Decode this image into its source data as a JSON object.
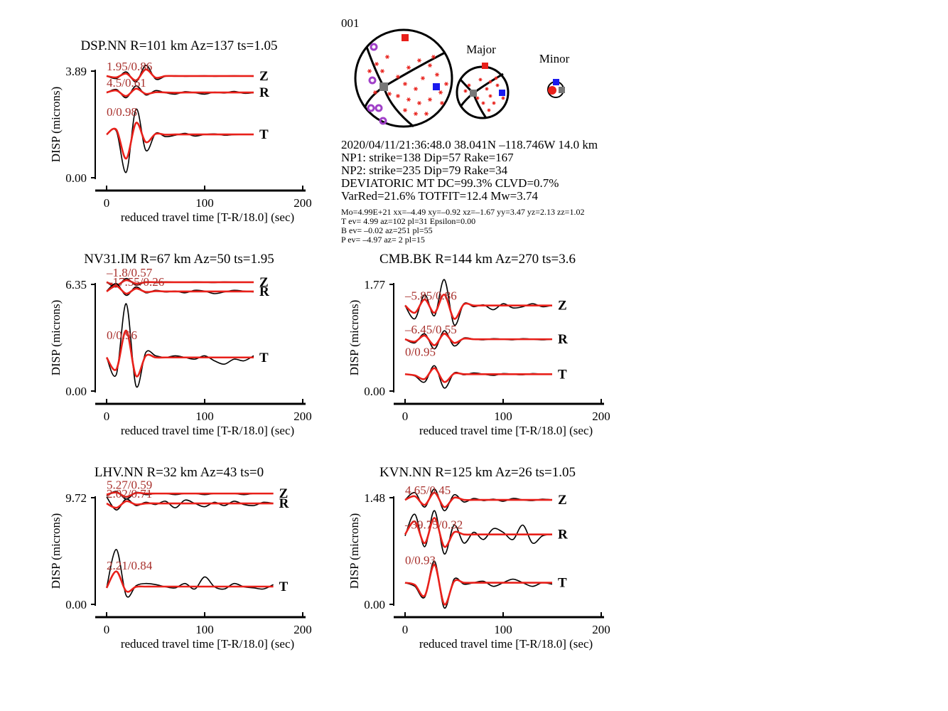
{
  "figure_id": "001",
  "focal_mechanism_labels": {
    "major": "Major",
    "minor": "Minor"
  },
  "event_info": [
    "2020/04/11/21:36:48.0 38.041N –118.746W 14.0 km",
    "NP1: strike=138 Dip=57 Rake=167",
    "NP2: strike=235 Dip=79 Rake=34",
    "DEVIATORIC MT DC=99.3% CLVD=0.7%",
    "VarRed=21.6% TOTFIT=12.4 Mw=3.74"
  ],
  "solution_details": [
    "Mo=4.99E+21 xx=–4.49 xy=–0.92 xz=–1.67 yy=3.47 yz=2.13 zz=1.02",
    "T ev=  4.99 az=102 pl=31 Epsilon=0.00",
    "B ev= –0.02 az=251 pl=55",
    "P ev= –4.97 az=  2 pl=15"
  ],
  "chart_data": [
    {
      "type": "line",
      "title": "DSP.NN R=101 km Az=137 ts=1.05",
      "ylabel": "DISP (microns)",
      "xlabel": "reduced travel time [T-R/18.0] (sec)",
      "xlim": [
        0,
        200
      ],
      "xticks": [
        0,
        100,
        200
      ],
      "ylim": [
        0,
        3.89
      ],
      "yticks": [
        {
          "value": 0,
          "label": "0.00"
        },
        3.89
      ],
      "observed_color": "#000000",
      "synthetic_color": "#e8201a",
      "fit_label_color": "#a8302c",
      "x": [
        0,
        10,
        20,
        30,
        40,
        50,
        60,
        70,
        80,
        90,
        100,
        110,
        120,
        130,
        140,
        150
      ],
      "traces": [
        {
          "name": "Z",
          "fit_label": "1.95/0.86",
          "observed": [
            3.71,
            3.62,
            3.86,
            3.5,
            4.1,
            3.6,
            3.7,
            3.72,
            3.7,
            3.71,
            3.72,
            3.7,
            3.71,
            3.72,
            3.71,
            3.7
          ],
          "synthetic": [
            3.71,
            3.66,
            3.8,
            3.55,
            3.95,
            3.65,
            3.71,
            3.71,
            3.71,
            3.71,
            3.71,
            3.71,
            3.71,
            3.71,
            3.71,
            3.71
          ]
        },
        {
          "name": "R",
          "fit_label": "4.5/0.61",
          "observed": [
            3.1,
            3.22,
            2.92,
            3.35,
            3.02,
            3.18,
            3.1,
            3.05,
            3.14,
            3.1,
            3.05,
            3.12,
            3.09,
            3.15,
            3.08,
            3.1
          ],
          "synthetic": [
            3.11,
            3.18,
            2.98,
            3.25,
            3.06,
            3.12,
            3.11,
            3.1,
            3.11,
            3.11,
            3.11,
            3.11,
            3.11,
            3.11,
            3.11,
            3.11
          ]
        },
        {
          "name": "T",
          "fit_label": "0/0.98",
          "observed": [
            1.58,
            1.7,
            0.2,
            2.5,
            1.0,
            1.62,
            1.5,
            1.55,
            1.62,
            1.52,
            1.58,
            1.6,
            1.55,
            1.57,
            1.58,
            1.58
          ],
          "synthetic": [
            1.58,
            1.75,
            0.7,
            2.0,
            1.3,
            1.6,
            1.57,
            1.58,
            1.58,
            1.58,
            1.58,
            1.58,
            1.58,
            1.58,
            1.58,
            1.58
          ]
        }
      ]
    },
    {
      "type": "line",
      "title": "NV31.IM R=67 km Az=50 ts=1.95",
      "ylabel": "DISP (microns)",
      "xlabel": "reduced travel time [T-R/18.0] (sec)",
      "xlim": [
        0,
        200
      ],
      "xticks": [
        0,
        100,
        200
      ],
      "ylim": [
        0,
        6.35
      ],
      "yticks": [
        {
          "value": 0,
          "label": "0.00"
        },
        6.35
      ],
      "observed_color": "#000000",
      "synthetic_color": "#e8201a",
      "fit_label_color": "#a8302c",
      "x": [
        0,
        10,
        20,
        30,
        40,
        50,
        60,
        70,
        80,
        90,
        100,
        110,
        120,
        130,
        140,
        150
      ],
      "traces": [
        {
          "name": "Z",
          "fit_label": "–1.8/0.57",
          "observed": [
            6.48,
            6.2,
            6.7,
            6.3,
            6.5,
            6.45,
            6.5,
            6.48,
            6.47,
            6.5,
            6.48,
            6.46,
            6.5,
            6.48,
            6.47,
            6.48
          ],
          "synthetic": [
            6.48,
            6.3,
            6.6,
            6.4,
            6.48,
            6.48,
            6.48,
            6.48,
            6.48,
            6.48,
            6.48,
            6.48,
            6.48,
            6.48,
            6.48,
            6.48
          ]
        },
        {
          "name": "R",
          "fit_label": "–17.55/0.26",
          "observed": [
            5.95,
            6.4,
            5.7,
            6.2,
            5.85,
            6.0,
            5.9,
            5.95,
            5.85,
            6.0,
            5.95,
            5.8,
            5.9,
            6.0,
            5.95,
            5.9
          ],
          "synthetic": [
            5.93,
            6.25,
            5.8,
            6.1,
            5.9,
            5.95,
            5.93,
            5.93,
            5.93,
            5.93,
            5.93,
            5.93,
            5.93,
            5.93,
            5.93,
            5.93
          ]
        },
        {
          "name": "T",
          "fit_label": "0/0.96",
          "observed": [
            2.0,
            1.0,
            5.2,
            0.3,
            2.3,
            2.1,
            2.0,
            2.1,
            2.0,
            1.9,
            2.1,
            1.8,
            1.6,
            1.9,
            1.8,
            2.1
          ],
          "synthetic": [
            2.0,
            1.3,
            3.6,
            0.9,
            2.1,
            2.0,
            2.0,
            2.0,
            2.0,
            2.0,
            2.0,
            2.0,
            2.0,
            2.0,
            2.0,
            2.0
          ]
        }
      ]
    },
    {
      "type": "line",
      "title": "LHV.NN R=32 km Az=43 ts=0",
      "ylabel": "DISP (microns)",
      "xlabel": "reduced travel time [T-R/18.0] (sec)",
      "xlim": [
        0,
        200
      ],
      "xticks": [
        0,
        100,
        200
      ],
      "ylim": [
        0,
        9.72
      ],
      "yticks": [
        {
          "value": 0,
          "label": "0.00"
        },
        9.72
      ],
      "observed_color": "#000000",
      "synthetic_color": "#e8201a",
      "fit_label_color": "#a8302c",
      "x": [
        0,
        10,
        20,
        30,
        40,
        50,
        60,
        70,
        80,
        90,
        100,
        110,
        120,
        130,
        140,
        150,
        160,
        170
      ],
      "traces": [
        {
          "name": "Z",
          "fit_label": "5.27/0.59",
          "observed": [
            9.9,
            10.3,
            9.6,
            10.2,
            10.0,
            10.1,
            10.1,
            10.0,
            10.1,
            10.1,
            10.0,
            10.1,
            10.1,
            10.1,
            10.0,
            10.1,
            10.1,
            10.1
          ],
          "synthetic": [
            10.0,
            10.2,
            9.8,
            10.15,
            10.1,
            10.1,
            10.1,
            10.1,
            10.1,
            10.1,
            10.1,
            10.1,
            10.1,
            10.1,
            10.1,
            10.1,
            10.1,
            10.1
          ]
        },
        {
          "name": "R",
          "fit_label": "2.02/0.71",
          "observed": [
            9.8,
            8.6,
            9.6,
            9.0,
            9.3,
            9.1,
            9.4,
            8.8,
            9.5,
            9.2,
            8.9,
            9.3,
            9.0,
            9.4,
            9.1,
            9.0,
            9.3,
            9.2
          ],
          "synthetic": [
            9.2,
            8.8,
            9.4,
            9.1,
            9.2,
            9.2,
            9.2,
            9.2,
            9.2,
            9.2,
            9.2,
            9.2,
            9.2,
            9.2,
            9.2,
            9.2,
            9.2,
            9.2
          ]
        },
        {
          "name": "T",
          "fit_label": "2.21/0.84",
          "observed": [
            1.5,
            5.0,
            0.8,
            1.7,
            1.9,
            1.8,
            1.6,
            1.5,
            1.9,
            1.4,
            2.5,
            1.6,
            1.4,
            1.9,
            1.6,
            1.5,
            1.4,
            1.8
          ],
          "synthetic": [
            1.5,
            3.0,
            1.2,
            1.6,
            1.62,
            1.62,
            1.62,
            1.62,
            1.62,
            1.62,
            1.62,
            1.62,
            1.62,
            1.62,
            1.62,
            1.62,
            1.62,
            1.62
          ]
        }
      ]
    },
    {
      "type": "line",
      "title": "CMB.BK R=144 km Az=270 ts=3.6",
      "ylabel": "DISP (microns)",
      "xlabel": "reduced travel time [T-R/18.0] (sec)",
      "xlim": [
        0,
        200
      ],
      "xticks": [
        0,
        100,
        200
      ],
      "ylim": [
        0,
        1.77
      ],
      "yticks": [
        {
          "value": 0,
          "label": "0.00"
        },
        1.77
      ],
      "observed_color": "#000000",
      "synthetic_color": "#e8201a",
      "fit_label_color": "#a8302c",
      "x": [
        0,
        10,
        20,
        30,
        40,
        50,
        60,
        70,
        80,
        90,
        100,
        110,
        120,
        130,
        140,
        150
      ],
      "traces": [
        {
          "name": "Z",
          "fit_label": "–5.85/0.86",
          "observed": [
            1.42,
            1.2,
            1.6,
            1.25,
            1.85,
            1.1,
            1.45,
            1.4,
            1.43,
            1.35,
            1.45,
            1.38,
            1.4,
            1.45,
            1.4,
            1.42
          ],
          "synthetic": [
            1.42,
            1.3,
            1.52,
            1.3,
            1.6,
            1.2,
            1.44,
            1.42,
            1.42,
            1.42,
            1.42,
            1.42,
            1.42,
            1.42,
            1.42,
            1.42
          ]
        },
        {
          "name": "R",
          "fit_label": "–6.45/0.55",
          "observed": [
            0.86,
            0.8,
            0.95,
            0.7,
            1.0,
            0.75,
            0.88,
            0.86,
            0.85,
            0.87,
            0.86,
            0.85,
            0.87,
            0.86,
            0.85,
            0.86
          ],
          "synthetic": [
            0.86,
            0.82,
            0.92,
            0.76,
            0.95,
            0.8,
            0.87,
            0.86,
            0.86,
            0.86,
            0.86,
            0.86,
            0.86,
            0.86,
            0.86,
            0.86
          ]
        },
        {
          "name": "T",
          "fit_label": "0/0.95",
          "observed": [
            0.28,
            0.25,
            0.15,
            0.42,
            0.05,
            0.3,
            0.27,
            0.3,
            0.28,
            0.26,
            0.29,
            0.28,
            0.27,
            0.29,
            0.28,
            0.28
          ],
          "synthetic": [
            0.28,
            0.26,
            0.2,
            0.38,
            0.15,
            0.29,
            0.28,
            0.28,
            0.28,
            0.28,
            0.28,
            0.28,
            0.28,
            0.28,
            0.28,
            0.28
          ]
        }
      ]
    },
    {
      "type": "line",
      "title": "KVN.NN R=125 km Az=26 ts=1.05",
      "ylabel": "DISP (microns)",
      "xlabel": "reduced travel time [T-R/18.0] (sec)",
      "xlim": [
        0,
        200
      ],
      "xticks": [
        0,
        100,
        200
      ],
      "ylim": [
        0,
        1.48
      ],
      "yticks": [
        {
          "value": 0,
          "label": "0.00"
        },
        1.48
      ],
      "observed_color": "#000000",
      "synthetic_color": "#e8201a",
      "fit_label_color": "#a8302c",
      "x": [
        0,
        10,
        20,
        30,
        40,
        50,
        60,
        70,
        80,
        90,
        100,
        110,
        120,
        130,
        140,
        150
      ],
      "traces": [
        {
          "name": "Z",
          "fit_label": "4.65/0.45",
          "observed": [
            1.45,
            1.55,
            1.35,
            1.6,
            1.3,
            1.52,
            1.42,
            1.47,
            1.44,
            1.46,
            1.43,
            1.47,
            1.45,
            1.44,
            1.46,
            1.45
          ],
          "synthetic": [
            1.45,
            1.5,
            1.38,
            1.55,
            1.35,
            1.48,
            1.45,
            1.45,
            1.45,
            1.45,
            1.45,
            1.45,
            1.45,
            1.45,
            1.45,
            1.45
          ]
        },
        {
          "name": "R",
          "fit_label": "–39.75/0.32",
          "observed": [
            0.95,
            1.25,
            0.8,
            1.3,
            0.7,
            1.1,
            0.85,
            1.0,
            0.9,
            1.05,
            1.0,
            0.9,
            1.1,
            0.85,
            0.95,
            0.97
          ],
          "synthetic": [
            0.97,
            1.15,
            0.85,
            1.2,
            0.8,
            1.0,
            0.97,
            0.97,
            0.97,
            0.97,
            0.97,
            0.97,
            0.97,
            0.97,
            0.97,
            0.97
          ]
        },
        {
          "name": "T",
          "fit_label": "0/0.93",
          "observed": [
            0.3,
            0.25,
            0.1,
            0.6,
            -0.05,
            0.35,
            0.28,
            0.3,
            0.32,
            0.25,
            0.3,
            0.35,
            0.3,
            0.25,
            0.3,
            0.28
          ],
          "synthetic": [
            0.3,
            0.27,
            0.12,
            0.55,
            0.0,
            0.32,
            0.3,
            0.3,
            0.3,
            0.3,
            0.3,
            0.3,
            0.3,
            0.3,
            0.3,
            0.3
          ]
        }
      ]
    }
  ]
}
